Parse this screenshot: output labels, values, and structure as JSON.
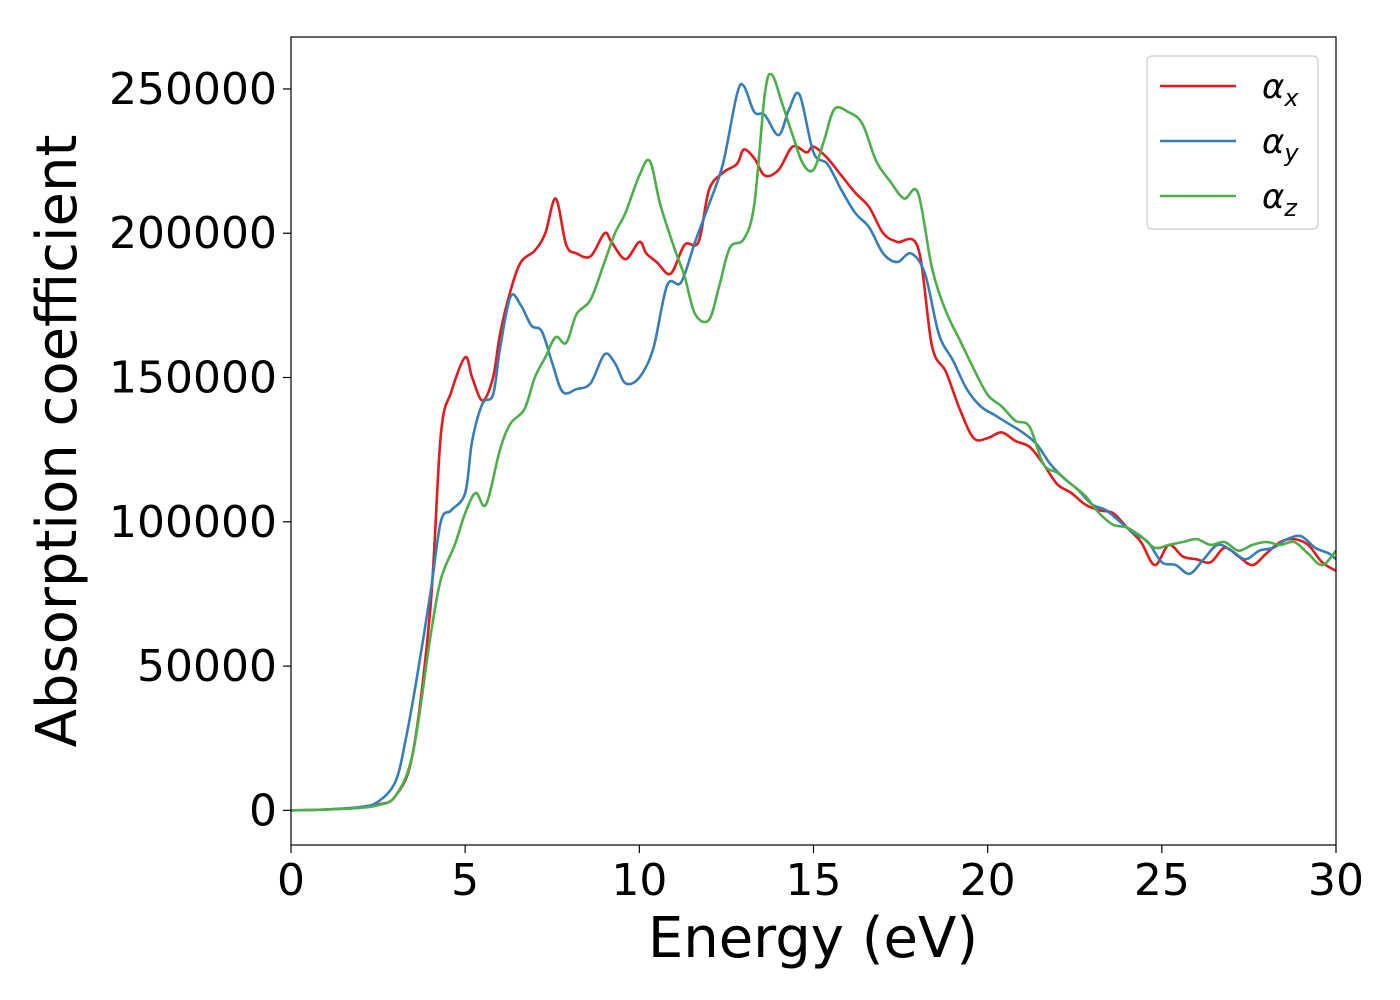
{
  "chart_data": {
    "type": "line",
    "xlabel": "Energy (eV)",
    "ylabel": "Absorption coefficient",
    "xlim": [
      0,
      30
    ],
    "ylim": [
      -12000,
      268000
    ],
    "x_ticks": [
      "0",
      "5",
      "10",
      "15",
      "20",
      "25",
      "30"
    ],
    "y_ticks": [
      "0",
      "50000",
      "100000",
      "150000",
      "200000",
      "250000"
    ],
    "grid": false,
    "legend_position": "top-right",
    "series": [
      {
        "name": "α",
        "subscript": "x",
        "color": "#e41a1c",
        "x": [
          0,
          1,
          2,
          2.5,
          3,
          3.5,
          4,
          4.3,
          4.6,
          5,
          5.2,
          5.5,
          5.8,
          6,
          6.3,
          6.6,
          7,
          7.3,
          7.6,
          7.9,
          8.2,
          8.6,
          9,
          9.2,
          9.6,
          10,
          10.2,
          10.5,
          10.9,
          11.3,
          11.7,
          12,
          12.4,
          12.8,
          13,
          13.3,
          13.6,
          14,
          14.4,
          14.8,
          15,
          15.4,
          15.8,
          16.2,
          16.6,
          17,
          17.4,
          18,
          18.4,
          18.8,
          19.2,
          19.6,
          20,
          20.4,
          20.8,
          21.2,
          21.6,
          22,
          22.4,
          22.8,
          23.2,
          23.6,
          24,
          24.4,
          24.8,
          25.2,
          25.6,
          26,
          26.4,
          26.8,
          27.2,
          27.6,
          28,
          28.4,
          28.8,
          29.2,
          29.6,
          30
        ],
        "y": [
          0,
          300,
          1000,
          2000,
          5000,
          20000,
          70000,
          130000,
          145000,
          157000,
          150000,
          142000,
          150000,
          165000,
          180000,
          190000,
          194000,
          200000,
          212000,
          196000,
          193000,
          192000,
          200000,
          197000,
          191000,
          197000,
          193000,
          190000,
          186000,
          196000,
          197000,
          215000,
          221000,
          224000,
          229000,
          226000,
          220000,
          222000,
          230000,
          228000,
          230000,
          226000,
          220000,
          214000,
          209000,
          200000,
          197000,
          195000,
          161000,
          152000,
          139000,
          129000,
          129000,
          131000,
          128000,
          126000,
          120000,
          113000,
          110000,
          106000,
          104000,
          103000,
          98000,
          93000,
          85000,
          92000,
          88000,
          87000,
          86000,
          91000,
          88000,
          85000,
          89000,
          93000,
          94000,
          92000,
          86000,
          83000
        ]
      },
      {
        "name": "α",
        "subscript": "y",
        "color": "#377eb8",
        "x": [
          0,
          1,
          2,
          2.5,
          3,
          3.3,
          3.6,
          4,
          4.3,
          4.6,
          5,
          5.2,
          5.5,
          5.8,
          6,
          6.3,
          6.6,
          6.9,
          7.2,
          7.5,
          7.8,
          8.2,
          8.6,
          9,
          9.3,
          9.6,
          10,
          10.4,
          10.8,
          11.2,
          11.6,
          12,
          12.4,
          12.8,
          13,
          13.3,
          13.6,
          14,
          14.3,
          14.6,
          15,
          15.4,
          15.8,
          16.2,
          16.6,
          17,
          17.4,
          17.8,
          18.2,
          18.6,
          19,
          19.4,
          19.8,
          20.2,
          20.6,
          21,
          21.4,
          21.8,
          22.2,
          22.6,
          23,
          23.4,
          23.8,
          24.2,
          24.6,
          25,
          25.4,
          25.8,
          26.2,
          26.6,
          27,
          27.4,
          27.8,
          28.2,
          28.6,
          29,
          29.4,
          29.8,
          30
        ],
        "y": [
          0,
          300,
          1200,
          3000,
          10000,
          25000,
          45000,
          75000,
          100000,
          104000,
          110000,
          128000,
          141000,
          144000,
          160000,
          178000,
          175000,
          168000,
          166000,
          155000,
          145000,
          146000,
          148000,
          158000,
          155000,
          148000,
          150000,
          160000,
          182000,
          183000,
          197000,
          210000,
          224000,
          248000,
          251000,
          242000,
          241000,
          234000,
          243000,
          248000,
          228000,
          224000,
          215000,
          207000,
          202000,
          193000,
          190000,
          193000,
          186000,
          165000,
          156000,
          146000,
          140000,
          137000,
          134000,
          131000,
          127000,
          120000,
          115000,
          111000,
          106000,
          104000,
          100000,
          96000,
          93000,
          86000,
          85000,
          82000,
          87000,
          92000,
          90000,
          87000,
          90000,
          91000,
          94000,
          95000,
          91000,
          89000,
          87000
        ]
      },
      {
        "name": "α",
        "subscript": "z",
        "color": "#4daf4a",
        "x": [
          0,
          1,
          2,
          2.5,
          3,
          3.5,
          4,
          4.3,
          4.7,
          5,
          5.3,
          5.6,
          6,
          6.3,
          6.7,
          7,
          7.3,
          7.6,
          7.9,
          8.2,
          8.6,
          9,
          9.3,
          9.6,
          10,
          10.3,
          10.6,
          11,
          11.3,
          11.6,
          12,
          12.3,
          12.6,
          13,
          13.3,
          13.6,
          13.8,
          14.1,
          14.4,
          14.7,
          15,
          15.3,
          15.6,
          16,
          16.4,
          16.8,
          17.2,
          17.6,
          18,
          18.4,
          18.8,
          19.2,
          19.6,
          20,
          20.4,
          20.8,
          21.2,
          21.6,
          22,
          22.4,
          22.8,
          23.2,
          23.6,
          24,
          24.4,
          24.8,
          25.2,
          25.6,
          26,
          26.4,
          26.8,
          27.2,
          27.6,
          28,
          28.4,
          28.8,
          29.2,
          29.6,
          30
        ],
        "y": [
          0,
          300,
          900,
          1800,
          5000,
          20000,
          60000,
          80000,
          92000,
          103000,
          110000,
          106000,
          125000,
          134000,
          139000,
          150000,
          157000,
          164000,
          162000,
          172000,
          177000,
          190000,
          200000,
          207000,
          220000,
          225000,
          210000,
          195000,
          185000,
          172000,
          170000,
          182000,
          195000,
          198000,
          210000,
          248000,
          255000,
          245000,
          234000,
          224000,
          222000,
          232000,
          243000,
          242000,
          238000,
          225000,
          218000,
          212000,
          214000,
          188000,
          173000,
          163000,
          153000,
          144000,
          140000,
          135000,
          133000,
          120000,
          117000,
          113000,
          109000,
          103000,
          99000,
          98000,
          95000,
          91000,
          92000,
          93000,
          94000,
          92000,
          93000,
          90000,
          92000,
          93000,
          92000,
          93000,
          89000,
          85000,
          90000
        ]
      }
    ]
  }
}
